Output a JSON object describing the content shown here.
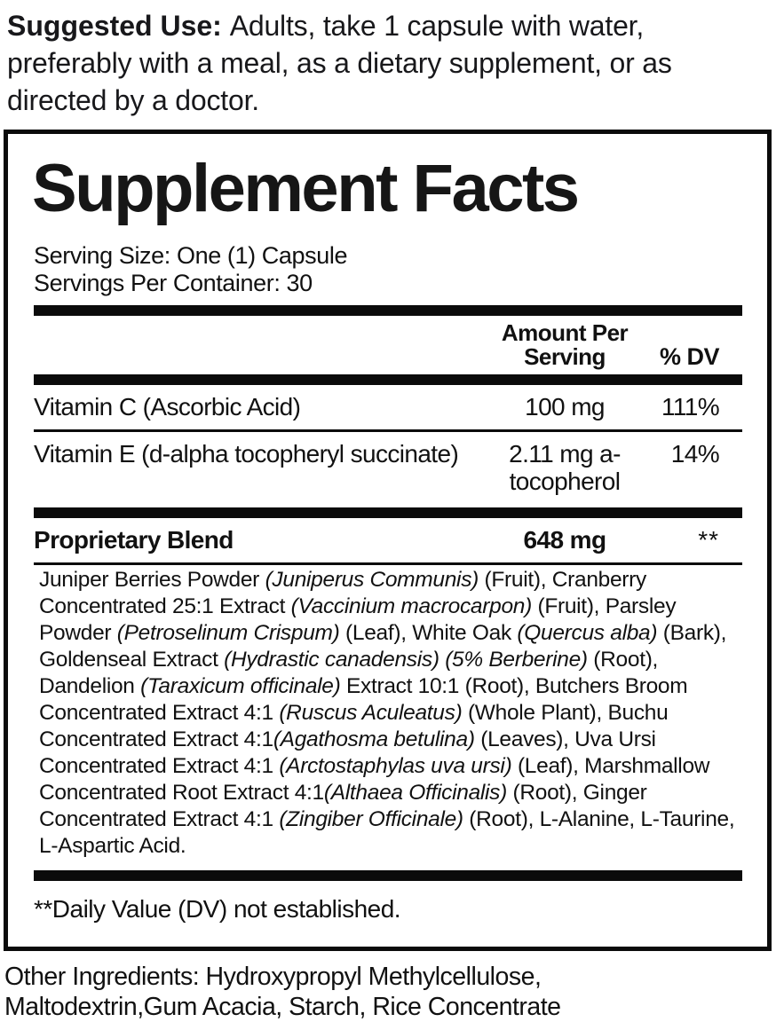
{
  "suggested_use": {
    "label": "Suggested Use: ",
    "text": "Adults, take 1 capsule with water, preferably with a meal, as a dietary supplement, or as directed by a doctor."
  },
  "panel": {
    "title": "Supplement Facts",
    "serving_size": "Serving Size: One (1) Capsule",
    "servings_per_container": "Servings Per Container: 30",
    "columns": {
      "amount": "Amount Per\nServing",
      "dv": "% DV"
    },
    "rows": [
      {
        "name": "Vitamin C (Ascorbic Acid)",
        "amount": "100 mg",
        "dv": "111%",
        "bold": false
      },
      {
        "name": "Vitamin E (d-alpha tocopheryl succinate)",
        "amount": "2.11 mg a-\ntocopherol",
        "dv": "14%",
        "bold": false
      },
      {
        "name": "Proprietary Blend",
        "amount": "648 mg",
        "dv": "**",
        "bold": true
      }
    ],
    "blend_segments": [
      {
        "text": "Juniper Berries Powder ",
        "italic": false
      },
      {
        "text": "(Juniperus Communis)",
        "italic": true
      },
      {
        "text": " (Fruit), Cranberry Concentrated 25:1 Extract ",
        "italic": false
      },
      {
        "text": "(Vaccinium macrocarpon)",
        "italic": true
      },
      {
        "text": " (Fruit), Parsley Powder ",
        "italic": false
      },
      {
        "text": "(Petroselinum Crispum)",
        "italic": true
      },
      {
        "text": " (Leaf), White Oak ",
        "italic": false
      },
      {
        "text": "(Quercus alba)",
        "italic": true
      },
      {
        "text": " (Bark), Goldenseal Extract ",
        "italic": false
      },
      {
        "text": "(Hydrastic canadensis)",
        "italic": true
      },
      {
        "text": " ",
        "italic": false
      },
      {
        "text": "(5% Berberine)",
        "italic": true
      },
      {
        "text": " (Root), Dandelion ",
        "italic": false
      },
      {
        "text": "(Taraxicum officinale)",
        "italic": true
      },
      {
        "text": " Extract 10:1 (Root), Butchers Broom Concentrated Extract 4:1 ",
        "italic": false
      },
      {
        "text": "(Ruscus Aculeatus)",
        "italic": true
      },
      {
        "text": " (Whole Plant), Buchu Concentrated Extract 4:1",
        "italic": false
      },
      {
        "text": "(Agathosma betulina)",
        "italic": true
      },
      {
        "text": " (Leaves), Uva Ursi Concentrated Extract 4:1 ",
        "italic": false
      },
      {
        "text": "(Arctostaphylas uva ursi)",
        "italic": true
      },
      {
        "text": " (Leaf), Marshmallow Concentrated Root Extract 4:1",
        "italic": false
      },
      {
        "text": "(Althaea Officinalis)",
        "italic": true
      },
      {
        "text": " (Root), Ginger Concentrated Extract 4:1 ",
        "italic": false
      },
      {
        "text": "(Zingiber Officinale)",
        "italic": true
      },
      {
        "text": " (Root), L-Alanine, L-Taurine, L-Aspartic Acid.",
        "italic": false
      }
    ],
    "footnote": "**Daily Value (DV) not established."
  },
  "other_ingredients": "Other Ingredients: Hydroxypropyl Methylcellulose, Maltodextrin,Gum Acacia, Starch, Rice Concentrate",
  "colors": {
    "text": "#111111",
    "bar": "#0b0b0b",
    "background": "#ffffff"
  }
}
